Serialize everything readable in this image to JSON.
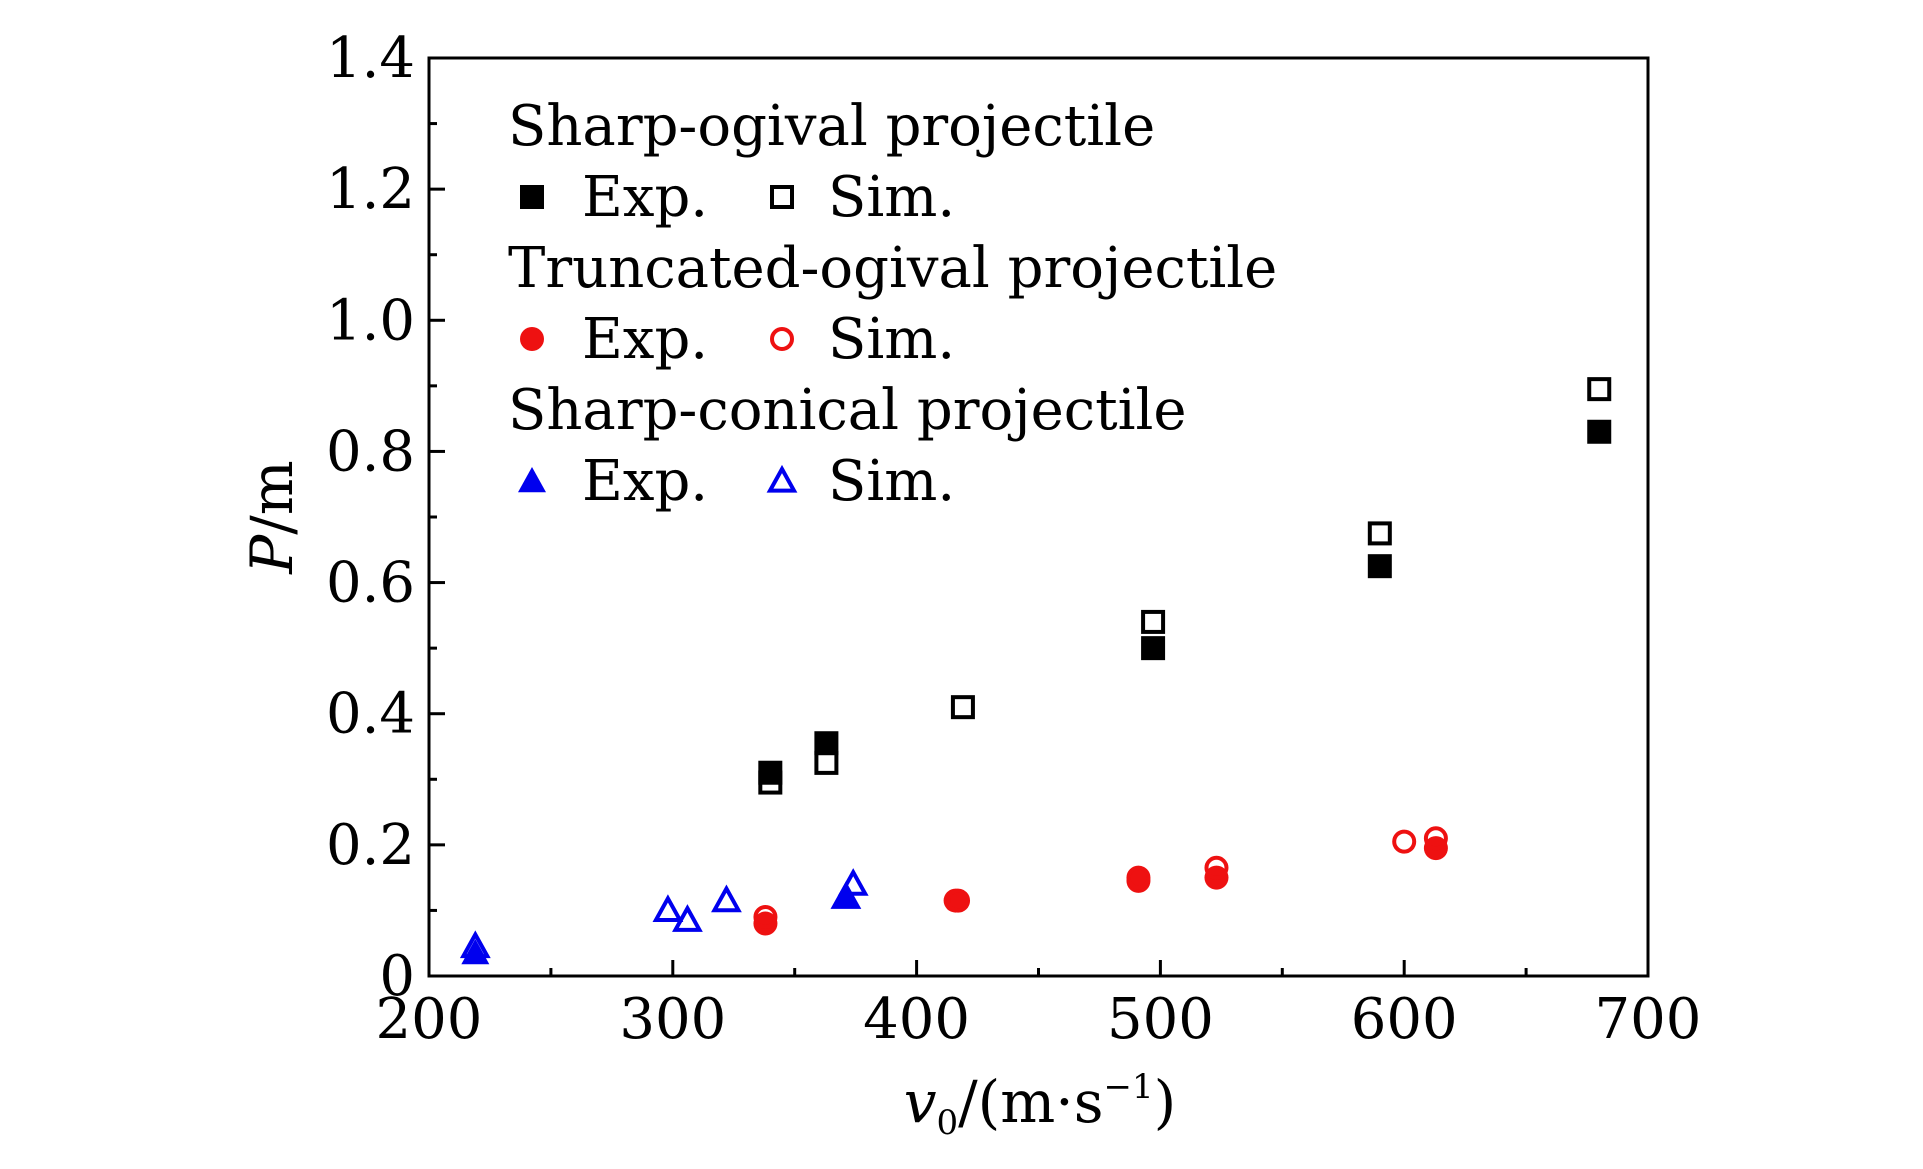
{
  "chart_data": {
    "type": "scatter",
    "xlabel": {
      "base": "v",
      "sub": "0",
      "rest": "/(m·s",
      "sup": "−1",
      "close": ")"
    },
    "ylabel": {
      "italic": "P",
      "rest": "/m"
    },
    "xlim": [
      200,
      700
    ],
    "ylim": [
      0,
      1.4
    ],
    "x_ticks": [
      200,
      300,
      400,
      500,
      600,
      700
    ],
    "x_tick_labels": [
      "200",
      "300",
      "400",
      "500",
      "600",
      "700"
    ],
    "y_ticks": [
      0,
      0.2,
      0.4,
      0.6,
      0.8,
      1.0,
      1.2,
      1.4
    ],
    "y_tick_labels": [
      "0",
      "0.2",
      "0.4",
      "0.6",
      "0.8",
      "1.0",
      "1.2",
      "1.4"
    ],
    "grid": false,
    "legend_position": "top-left",
    "legend": [
      {
        "title": "Sharp-ogival projectile",
        "entries": [
          "Exp.",
          "Sim."
        ]
      },
      {
        "title": "Truncated-ogival projectile",
        "entries": [
          "Exp.",
          "Sim."
        ]
      },
      {
        "title": "Sharp-conical projectile",
        "entries": [
          "Exp.",
          "Sim."
        ]
      }
    ],
    "series": [
      {
        "group": 0,
        "kind": "Exp.",
        "marker": "square",
        "filled": true,
        "color": "#000000",
        "x": [
          340,
          363,
          497,
          590,
          680
        ],
        "y": [
          0.31,
          0.355,
          0.5,
          0.625,
          0.83
        ]
      },
      {
        "group": 0,
        "kind": "Sim.",
        "marker": "square",
        "filled": false,
        "color": "#000000",
        "x": [
          340,
          363,
          419,
          497,
          590,
          680
        ],
        "y": [
          0.295,
          0.325,
          0.41,
          0.54,
          0.675,
          0.895
        ]
      },
      {
        "group": 1,
        "kind": "Exp.",
        "marker": "circle",
        "filled": true,
        "color": "#ee1111",
        "x": [
          338,
          416,
          491,
          523,
          613
        ],
        "y": [
          0.08,
          0.115,
          0.145,
          0.15,
          0.195
        ]
      },
      {
        "group": 1,
        "kind": "Sim.",
        "marker": "circle",
        "filled": false,
        "color": "#ee1111",
        "x": [
          338,
          417,
          491,
          523,
          600,
          613
        ],
        "y": [
          0.09,
          0.115,
          0.15,
          0.165,
          0.205,
          0.21
        ]
      },
      {
        "group": 2,
        "kind": "Exp.",
        "marker": "triangle",
        "filled": true,
        "color": "#0000ee",
        "x": [
          219,
          371
        ],
        "y": [
          0.035,
          0.12
        ]
      },
      {
        "group": 2,
        "kind": "Sim.",
        "marker": "triangle",
        "filled": false,
        "color": "#0000ee",
        "x": [
          219,
          298,
          306,
          322,
          371,
          374
        ],
        "y": [
          0.045,
          0.1,
          0.085,
          0.115,
          0.12,
          0.14
        ]
      }
    ]
  }
}
